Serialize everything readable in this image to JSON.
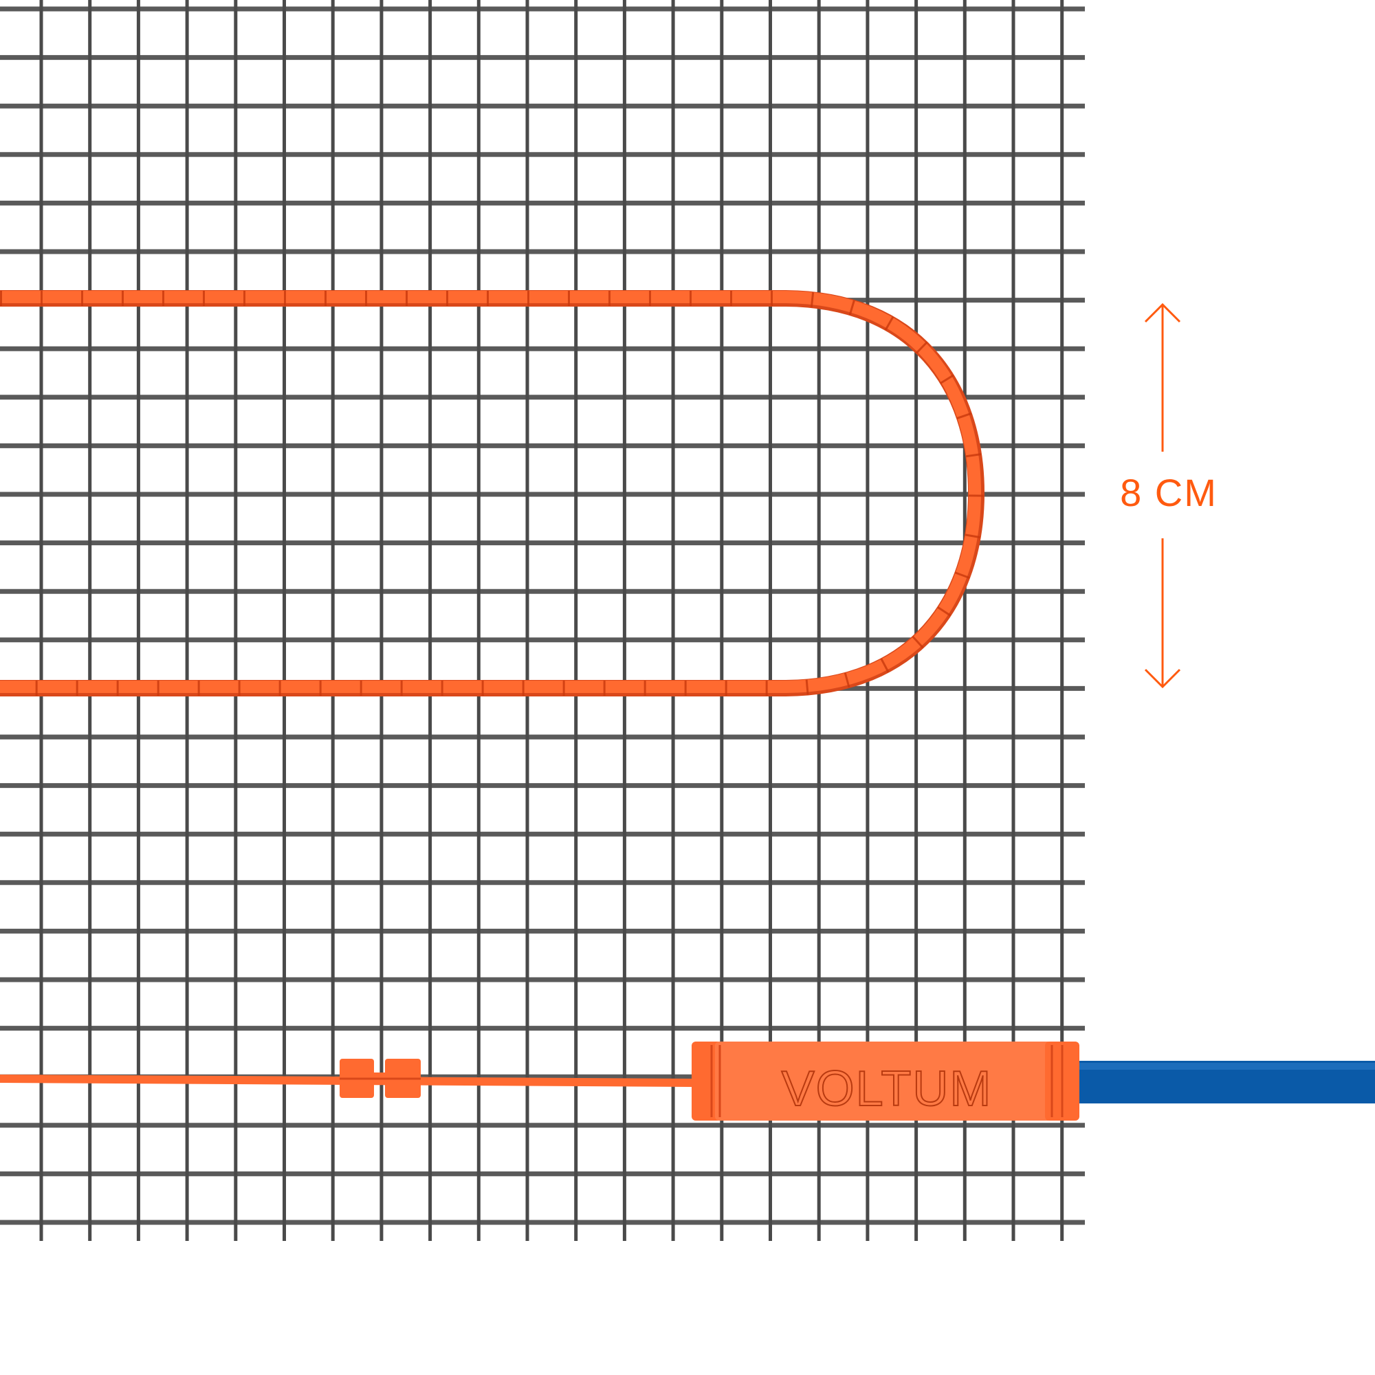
{
  "measurement": {
    "label": "8 CM",
    "color": "#ff5a0f"
  },
  "connector": {
    "brand": "VOLTUM",
    "color": "#ff7a45"
  },
  "colors": {
    "mesh": "#5a5a5a",
    "heating_cable": "#ff6a30",
    "power_cable": "#0a5aa8"
  },
  "icons": {
    "up": "arrow-up-icon",
    "down": "arrow-down-icon"
  }
}
